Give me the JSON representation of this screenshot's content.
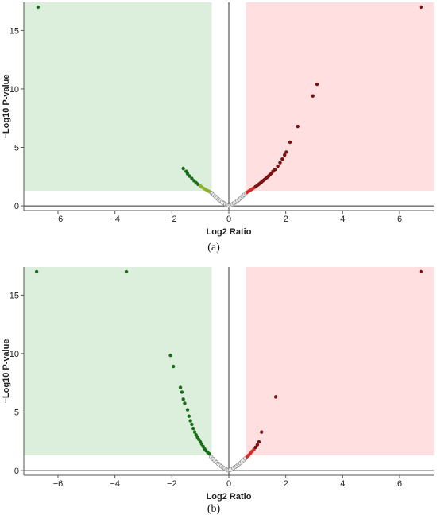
{
  "chart_data": [
    {
      "type": "scatter",
      "panel_label": "(a)",
      "xlabel": "Log2 Ratio",
      "ylabel": "−Log10 P-value",
      "xlim": [
        -7.2,
        7.2
      ],
      "ylim": [
        -0.4,
        17.4
      ],
      "x_ticks": [
        -6,
        -4,
        -2,
        0,
        2,
        4,
        6
      ],
      "x_tick_labels": [
        "−6",
        "−4",
        "−2",
        "0",
        "2",
        "4",
        "6"
      ],
      "y_ticks": [
        0,
        5,
        10,
        15
      ],
      "y_tick_labels": [
        "0",
        "5",
        "10",
        "15"
      ],
      "regions": [
        {
          "name": "down",
          "x": [
            -7.2,
            -0.6
          ],
          "y": [
            1.3,
            17.4
          ],
          "color": "#dcefdc"
        },
        {
          "name": "up",
          "x": [
            0.6,
            7.2
          ],
          "y": [
            1.3,
            17.4
          ],
          "color": "#ffdfe0"
        }
      ],
      "groups": [
        {
          "color": "#1a6b1a",
          "points": [
            [
              -6.7,
              17.0
            ],
            [
              -1.6,
              3.2
            ],
            [
              -1.5,
              2.95
            ],
            [
              -1.45,
              2.75
            ],
            [
              -1.38,
              2.55
            ],
            [
              -1.3,
              2.35
            ],
            [
              -1.22,
              2.15
            ],
            [
              -1.15,
              1.98
            ],
            [
              -1.08,
              1.85
            ]
          ]
        },
        {
          "color": "#8db030",
          "points": [
            [
              -1.0,
              1.72
            ],
            [
              -0.95,
              1.62
            ],
            [
              -0.88,
              1.5
            ],
            [
              -0.82,
              1.42
            ],
            [
              -0.76,
              1.32
            ],
            [
              -0.7,
              1.25
            ],
            [
              -0.64,
              1.16
            ]
          ]
        },
        {
          "color": "#d0d0d0",
          "points": [
            [
              -0.6,
              1.1
            ],
            [
              -0.54,
              0.95
            ],
            [
              -0.48,
              0.82
            ],
            [
              -0.42,
              0.68
            ],
            [
              -0.36,
              0.55
            ],
            [
              -0.3,
              0.44
            ],
            [
              -0.24,
              0.34
            ],
            [
              -0.18,
              0.24
            ],
            [
              -0.12,
              0.15
            ],
            [
              -0.06,
              0.07
            ],
            [
              0.0,
              0.02
            ],
            [
              0.06,
              0.07
            ],
            [
              0.12,
              0.15
            ],
            [
              0.18,
              0.24
            ],
            [
              0.24,
              0.34
            ],
            [
              0.3,
              0.44
            ],
            [
              0.36,
              0.55
            ],
            [
              0.42,
              0.68
            ],
            [
              0.48,
              0.82
            ],
            [
              0.54,
              0.95
            ],
            [
              0.6,
              1.1
            ]
          ]
        },
        {
          "color": "#d42a2a",
          "points": [
            [
              0.64,
              1.17
            ],
            [
              0.7,
              1.26
            ],
            [
              0.76,
              1.35
            ],
            [
              0.82,
              1.45
            ],
            [
              0.88,
              1.55
            ]
          ]
        },
        {
          "color": "#7a1010",
          "points": [
            [
              0.94,
              1.65
            ],
            [
              1.0,
              1.75
            ],
            [
              1.05,
              1.85
            ],
            [
              1.1,
              1.95
            ],
            [
              1.15,
              2.05
            ],
            [
              1.2,
              2.15
            ],
            [
              1.25,
              2.25
            ],
            [
              1.3,
              2.35
            ],
            [
              1.35,
              2.45
            ],
            [
              1.4,
              2.56
            ],
            [
              1.45,
              2.68
            ],
            [
              1.5,
              2.8
            ],
            [
              1.55,
              2.95
            ],
            [
              1.62,
              3.1
            ],
            [
              1.72,
              3.4
            ],
            [
              1.8,
              3.7
            ],
            [
              1.88,
              4.0
            ],
            [
              1.96,
              4.35
            ],
            [
              2.02,
              4.6
            ],
            [
              2.15,
              5.45
            ],
            [
              2.42,
              6.8
            ],
            [
              2.95,
              9.4
            ],
            [
              3.1,
              10.4
            ],
            [
              6.75,
              17.0
            ]
          ]
        }
      ]
    },
    {
      "type": "scatter",
      "panel_label": "(b)",
      "xlabel": "Log2 Ratio",
      "ylabel": "−Log10 P-value",
      "xlim": [
        -7.2,
        7.2
      ],
      "ylim": [
        -0.4,
        17.4
      ],
      "x_ticks": [
        -6,
        -4,
        -2,
        0,
        2,
        4,
        6
      ],
      "x_tick_labels": [
        "−6",
        "−4",
        "−2",
        "0",
        "2",
        "4",
        "6"
      ],
      "y_ticks": [
        0,
        5,
        10,
        15
      ],
      "y_tick_labels": [
        "0",
        "5",
        "10",
        "15"
      ],
      "regions": [
        {
          "name": "down",
          "x": [
            -7.2,
            -0.6
          ],
          "y": [
            1.3,
            17.4
          ],
          "color": "#dcefdc"
        },
        {
          "name": "up",
          "x": [
            0.6,
            7.2
          ],
          "y": [
            1.3,
            17.4
          ],
          "color": "#ffdfe0"
        }
      ],
      "groups": [
        {
          "color": "#1a6b1a",
          "points": [
            [
              -6.75,
              17.0
            ],
            [
              -3.6,
              17.0
            ],
            [
              -2.05,
              9.85
            ],
            [
              -1.95,
              8.9
            ],
            [
              -1.7,
              7.1
            ],
            [
              -1.65,
              6.7
            ],
            [
              -1.6,
              6.1
            ],
            [
              -1.55,
              5.75
            ],
            [
              -1.45,
              5.2
            ],
            [
              -1.4,
              4.65
            ],
            [
              -1.35,
              4.25
            ],
            [
              -1.3,
              3.95
            ],
            [
              -1.25,
              3.6
            ],
            [
              -1.2,
              3.3
            ],
            [
              -1.15,
              3.05
            ],
            [
              -1.1,
              2.85
            ],
            [
              -1.05,
              2.65
            ],
            [
              -1.0,
              2.45
            ],
            [
              -0.95,
              2.25
            ],
            [
              -0.9,
              2.05
            ],
            [
              -0.85,
              1.85
            ],
            [
              -0.8,
              1.7
            ],
            [
              -0.74,
              1.55
            ],
            [
              -0.68,
              1.42
            ]
          ]
        },
        {
          "color": "#d0d0d0",
          "points": [
            [
              -0.62,
              1.15
            ],
            [
              -0.56,
              1.0
            ],
            [
              -0.5,
              0.86
            ],
            [
              -0.44,
              0.72
            ],
            [
              -0.38,
              0.59
            ],
            [
              -0.32,
              0.47
            ],
            [
              -0.26,
              0.36
            ],
            [
              -0.2,
              0.26
            ],
            [
              -0.14,
              0.17
            ],
            [
              -0.08,
              0.09
            ],
            [
              -0.02,
              0.03
            ],
            [
              0.04,
              0.05
            ],
            [
              0.1,
              0.12
            ],
            [
              0.16,
              0.21
            ],
            [
              0.22,
              0.31
            ],
            [
              0.28,
              0.41
            ],
            [
              0.34,
              0.52
            ],
            [
              0.4,
              0.64
            ],
            [
              0.46,
              0.77
            ],
            [
              0.52,
              0.9
            ],
            [
              0.58,
              1.04
            ]
          ]
        },
        {
          "color": "#d42a2a",
          "points": [
            [
              0.64,
              1.18
            ],
            [
              0.7,
              1.32
            ],
            [
              0.76,
              1.48
            ],
            [
              0.82,
              1.64
            ],
            [
              0.88,
              1.8
            ]
          ]
        },
        {
          "color": "#7a1010",
          "points": [
            [
              0.94,
              1.98
            ],
            [
              1.0,
              2.2
            ],
            [
              1.06,
              2.45
            ],
            [
              1.15,
              3.3
            ],
            [
              1.65,
              6.3
            ],
            [
              6.75,
              17.0
            ]
          ]
        }
      ]
    }
  ]
}
